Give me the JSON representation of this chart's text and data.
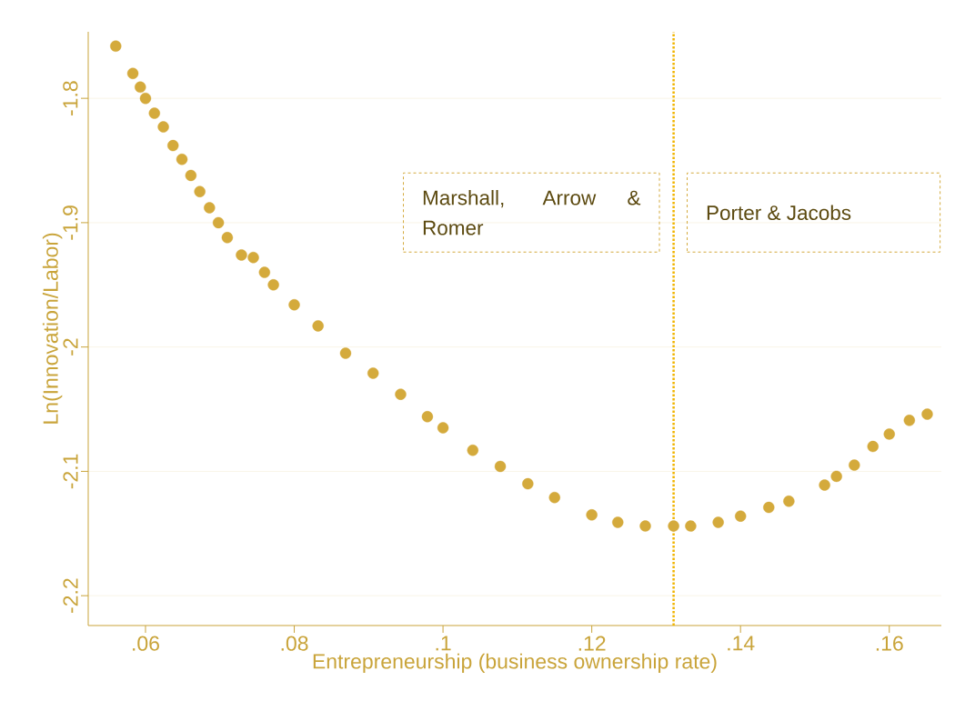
{
  "chart_data": {
    "type": "scatter",
    "xlabel": "Entrepreneurship (business ownership rate)",
    "ylabel": "Ln(Innovation/Labor)",
    "x": [
      0.056,
      0.0583,
      0.0593,
      0.06,
      0.0612,
      0.0624,
      0.0637,
      0.0649,
      0.0661,
      0.0673,
      0.0686,
      0.0698,
      0.071,
      0.0729,
      0.0745,
      0.076,
      0.0772,
      0.08,
      0.0832,
      0.0869,
      0.0906,
      0.0943,
      0.0979,
      0.1,
      0.104,
      0.1077,
      0.1114,
      0.115,
      0.12,
      0.1235,
      0.1272,
      0.131,
      0.1333,
      0.137,
      0.14,
      0.1438,
      0.1465,
      0.1513,
      0.1529,
      0.1553,
      0.1578,
      0.16,
      0.1627,
      0.1651
    ],
    "values": [
      -1.758,
      -1.78,
      -1.791,
      -1.8,
      -1.812,
      -1.823,
      -1.838,
      -1.849,
      -1.862,
      -1.875,
      -1.888,
      -1.9,
      -1.912,
      -1.926,
      -1.928,
      -1.94,
      -1.95,
      -1.966,
      -1.983,
      -2.005,
      -2.021,
      -2.038,
      -2.056,
      -2.065,
      -2.083,
      -2.096,
      -2.11,
      -2.121,
      -2.135,
      -2.141,
      -2.144,
      -2.144,
      -2.144,
      -2.141,
      -2.136,
      -2.129,
      -2.124,
      -2.111,
      -2.104,
      -2.095,
      -2.08,
      -2.07,
      -2.059,
      -2.054
    ],
    "color": "#d4aa3c",
    "marker": "circle",
    "xlim": [
      0.0523,
      0.167
    ],
    "ylim": [
      -2.224,
      -1.7465
    ],
    "xticks": [
      {
        "value": 0.06,
        "label": ".06"
      },
      {
        "value": 0.08,
        "label": ".08"
      },
      {
        "value": 0.1,
        "label": ".1"
      },
      {
        "value": 0.12,
        "label": ".12"
      },
      {
        "value": 0.14,
        "label": ".14"
      },
      {
        "value": 0.16,
        "label": ".16"
      }
    ],
    "yticks": [
      -1.8,
      -1.9,
      -2,
      -2.1,
      -2.2
    ],
    "grid": "y",
    "ref_lines": [
      {
        "axis": "x",
        "value": 0.131,
        "color": "#f0b400",
        "line_style": "dotted"
      }
    ],
    "annotations": [
      "Marshall, Arrow & Romer",
      "Porter & Jacobs"
    ]
  }
}
